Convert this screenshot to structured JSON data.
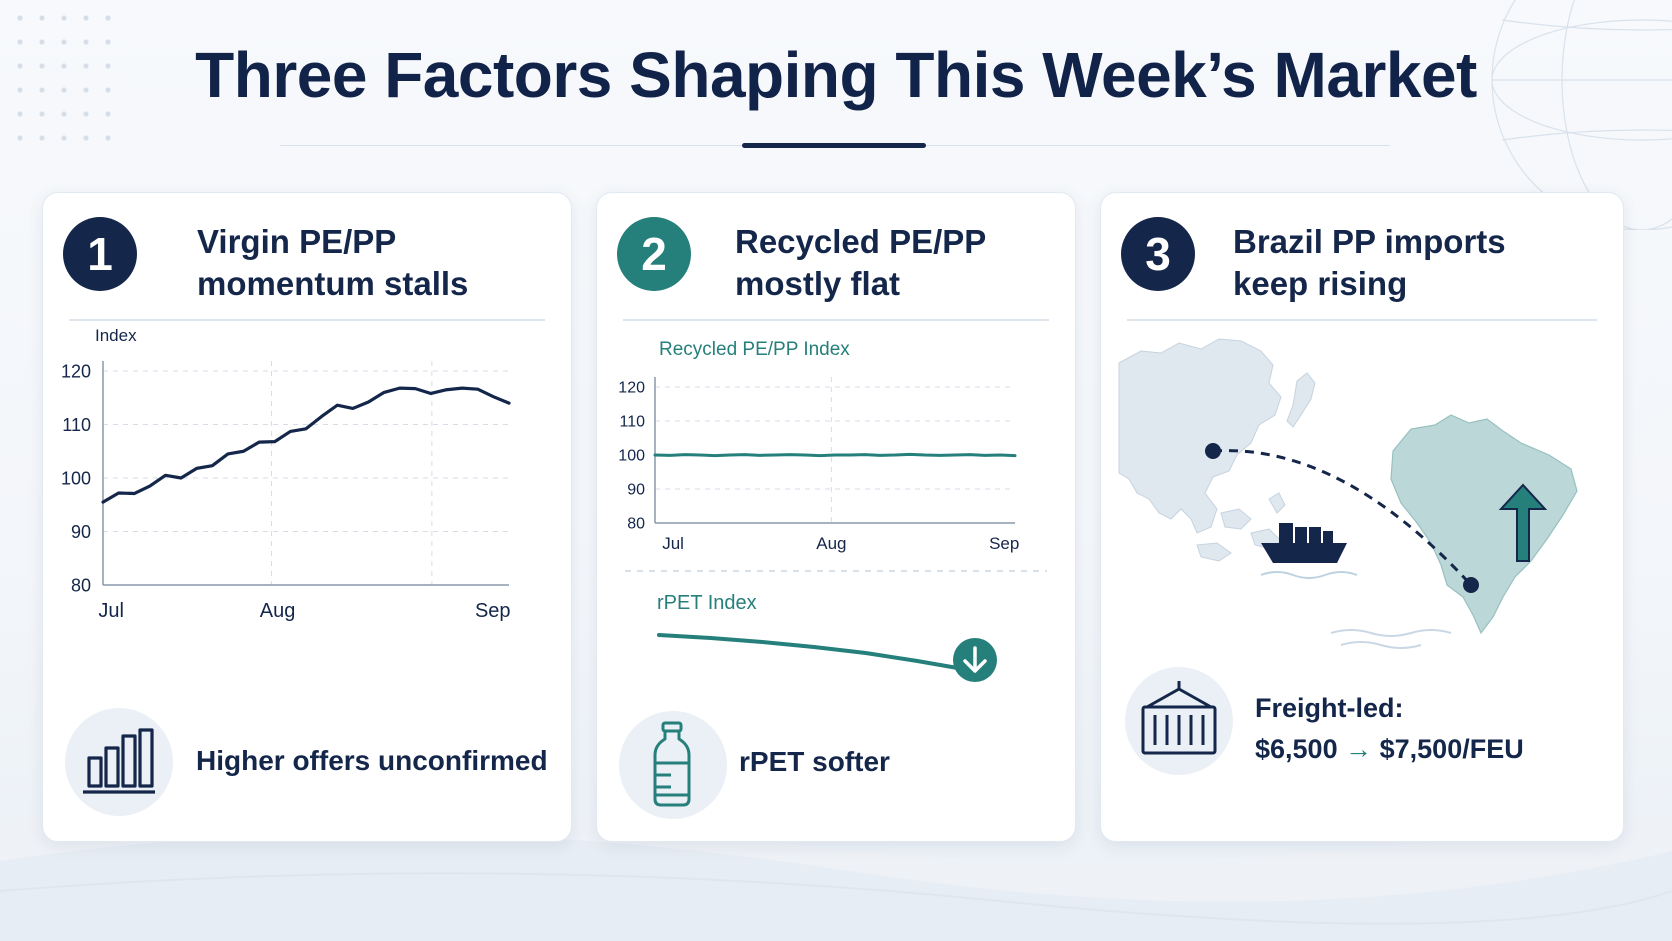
{
  "page": {
    "title": "Three Factors Shaping This Week’s Market"
  },
  "colors": {
    "navy": "#14264a",
    "teal": "#257f7b",
    "map_land": "#dfe7ef",
    "brazil_land": "#bcd7d7"
  },
  "cards": [
    {
      "number": "1",
      "title_line1": "Virgin PE/PP",
      "title_line2": "momentum stalls",
      "footer_icon": "bar-chart-icon",
      "footer_text": "Higher offers unconfirmed"
    },
    {
      "number": "2",
      "title_line1": "Recycled PE/PP",
      "title_line2": "mostly flat",
      "footer_icon": "plastic-bottle-icon",
      "footer_text": "rPET softer"
    },
    {
      "number": "3",
      "title_line1": "Brazil PP imports",
      "title_line2": "keep rising",
      "footer_icon": "shipping-container-icon",
      "footer_line1": "Freight-led:",
      "freight_from": "$6,500",
      "freight_arrow": "→",
      "freight_to": "$7,500/FEU"
    }
  ],
  "chart_data": [
    {
      "type": "line",
      "title": "",
      "ylabel": "Index",
      "xlabel": "",
      "x_ticks": [
        "Jul",
        "Aug",
        "Sep"
      ],
      "y_ticks": [
        80,
        90,
        100,
        110,
        120
      ],
      "ylim": [
        80,
        120
      ],
      "grid": "dashed",
      "series": [
        {
          "values": [
            95.5,
            97.2,
            97.1,
            98.5,
            100.5,
            100.0,
            101.8,
            102.3,
            104.5,
            105.0,
            106.7,
            106.8,
            108.7,
            109.2,
            111.5,
            113.6,
            113.0,
            114.2,
            116.0,
            116.8,
            116.7,
            115.8,
            116.5,
            116.8,
            116.6,
            115.2,
            114.0
          ]
        }
      ]
    },
    {
      "type": "line",
      "title": "Recycled PE/PP Index",
      "xlabel": "",
      "ylabel": "",
      "x_ticks": [
        "Jul",
        "Aug",
        "Sep"
      ],
      "y_ticks": [
        80,
        90,
        100,
        110,
        120
      ],
      "ylim": [
        80,
        120
      ],
      "grid": "dashed",
      "series": [
        {
          "values": [
            100.0,
            99.9,
            100.1,
            100.0,
            99.8,
            100.0,
            100.1,
            99.9,
            100.0,
            100.1,
            100.0,
            99.8,
            100.0,
            100.0,
            100.1,
            99.9,
            100.0,
            100.2,
            100.0,
            99.9,
            100.0,
            100.1,
            99.9,
            100.0,
            99.8
          ]
        }
      ]
    },
    {
      "type": "line",
      "title": "rPET Index",
      "trend": "down",
      "series": [
        {
          "values": [
            1.0,
            0.97,
            0.93,
            0.88,
            0.82,
            0.74,
            0.65
          ]
        }
      ]
    }
  ]
}
